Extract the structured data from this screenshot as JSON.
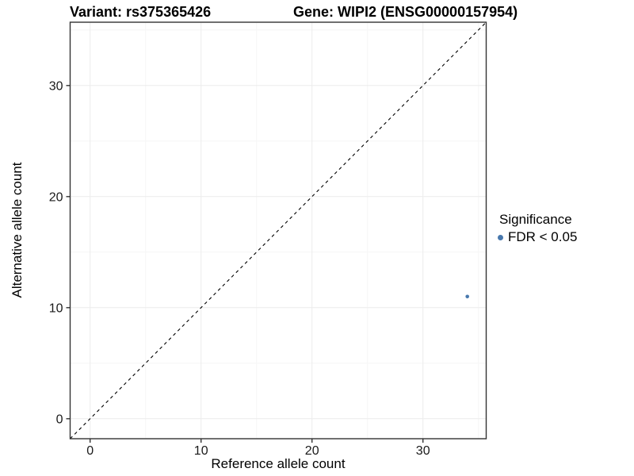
{
  "chart_data": {
    "type": "scatter",
    "titles": {
      "variant": "Variant: rs375365426",
      "gene": "Gene: WIPI2 (ENSG00000157954)"
    },
    "xlabel": "Reference allele count",
    "ylabel": "Alternative allele count",
    "xlim": [
      -1.8,
      35.7
    ],
    "ylim": [
      -1.8,
      35.7
    ],
    "xticks": [
      0,
      10,
      20,
      30
    ],
    "yticks": [
      0,
      10,
      20,
      30
    ],
    "minor_xticks": [
      5,
      15,
      25,
      35
    ],
    "minor_yticks": [
      5,
      15,
      25,
      35
    ],
    "grid": "major+minor",
    "identity_line": {
      "style": "dashed",
      "slope": 1,
      "intercept": 0
    },
    "series": [
      {
        "name": "FDR < 0.05",
        "color": "#4878AD",
        "point_radius": 2.3,
        "points": [
          {
            "x": 34,
            "y": 11
          }
        ]
      }
    ],
    "legend": {
      "title": "Significance",
      "position": "right",
      "entries": [
        {
          "label": "FDR < 0.05",
          "color": "#4878AD"
        }
      ]
    },
    "colors": {
      "grid_major": "#ececec",
      "grid_minor": "#f6f6f6",
      "panel_border": "#333333",
      "tick_mark": "#333333",
      "tick_label": "#1a1a1a",
      "identity_line": "#000000",
      "panel_background": "#ffffff"
    }
  }
}
